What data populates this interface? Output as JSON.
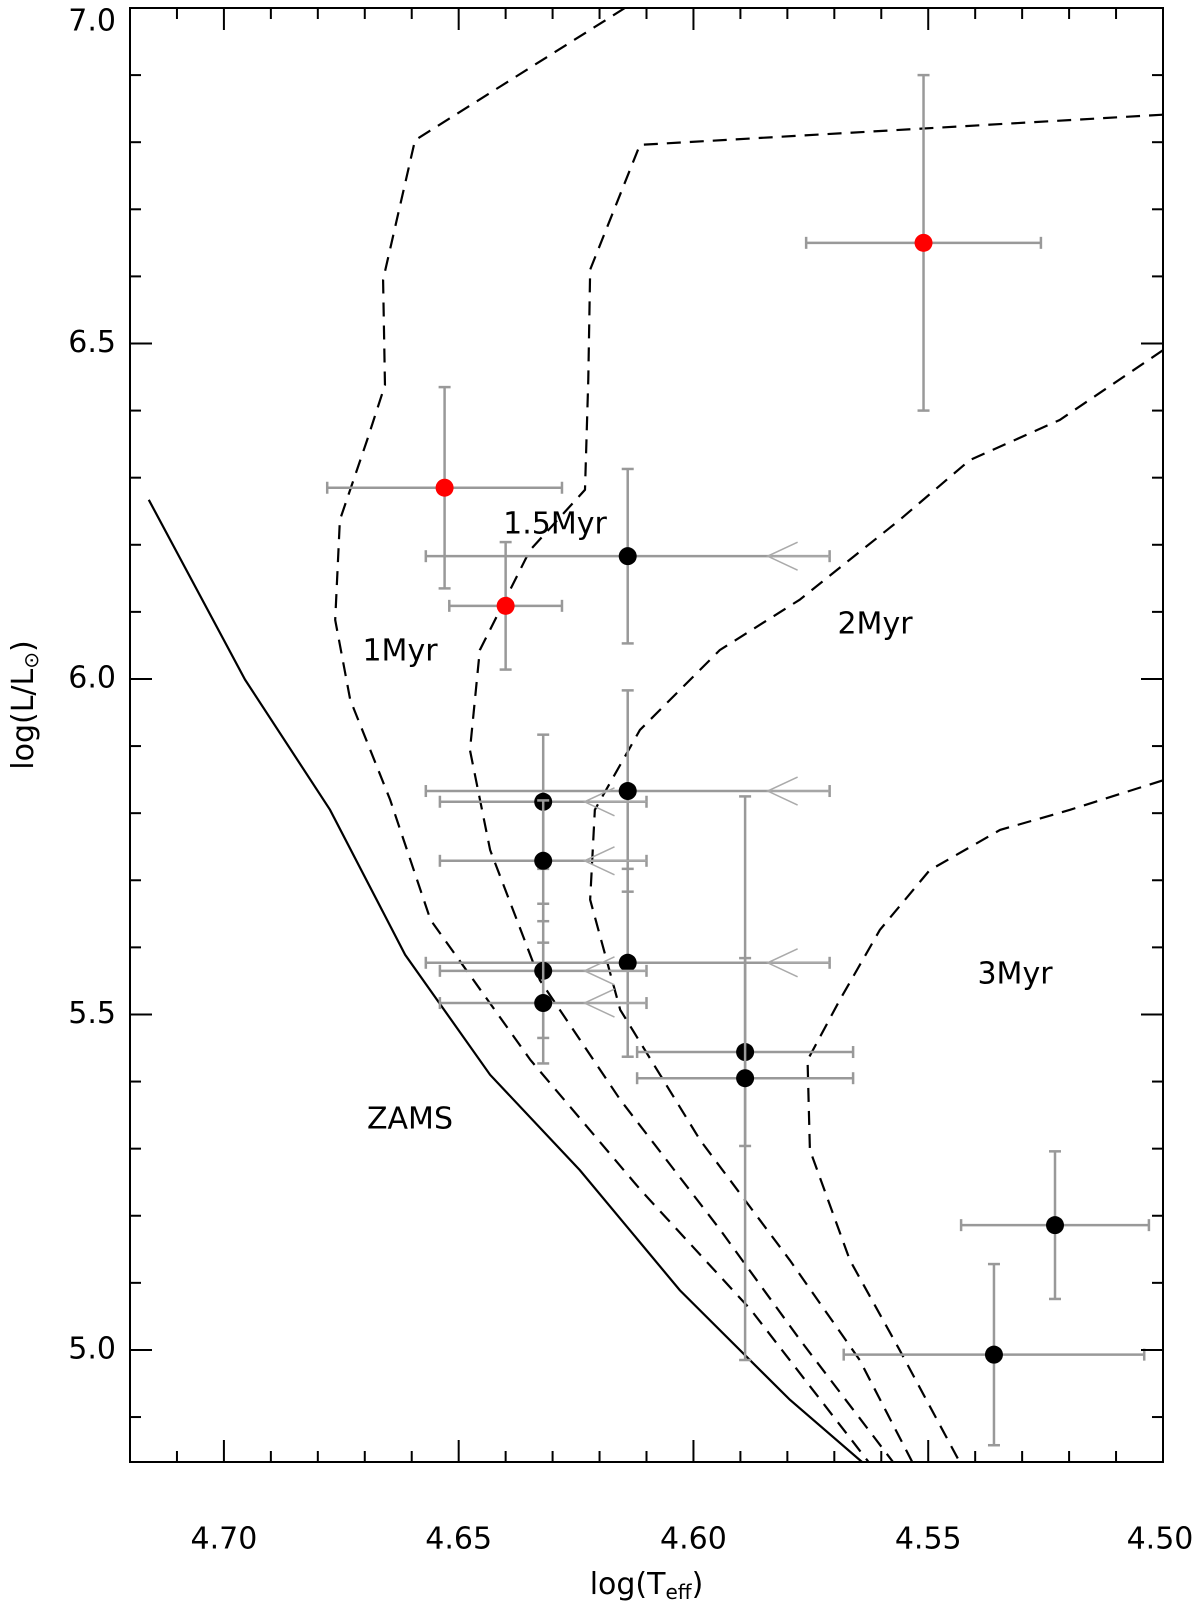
{
  "chart_data": {
    "type": "scatter",
    "xlabel": [
      "log(T",
      "eff",
      ")"
    ],
    "ylabel": [
      "log(L/L",
      "⊙",
      ")"
    ],
    "xlim": [
      4.72,
      4.5
    ],
    "ylim": [
      4.833,
      7.0
    ],
    "xticks": [
      {
        "value": 4.7,
        "label": "4.70"
      },
      {
        "value": 4.65,
        "label": "4.65"
      },
      {
        "value": 4.6,
        "label": "4.60"
      },
      {
        "value": 4.55,
        "label": "4.55"
      },
      {
        "value": 4.5,
        "label": "4.50"
      }
    ],
    "yticks": [
      {
        "value": 5.0,
        "label": "5.0"
      },
      {
        "value": 5.5,
        "label": "5.5"
      },
      {
        "value": 6.0,
        "label": "6.0"
      },
      {
        "value": 6.5,
        "label": "6.5"
      },
      {
        "value": 7.0,
        "label": "7.0"
      }
    ],
    "xminorticks": [
      4.71,
      4.69,
      4.68,
      4.67,
      4.66,
      4.64,
      4.63,
      4.62,
      4.61,
      4.59,
      4.58,
      4.57,
      4.56,
      4.54,
      4.53,
      4.52,
      4.51
    ],
    "yminorticks": [
      4.9,
      5.1,
      5.2,
      5.3,
      5.4,
      5.6,
      5.7,
      5.8,
      5.9,
      6.1,
      6.2,
      6.3,
      6.4,
      6.6,
      6.7,
      6.8,
      6.9
    ],
    "errorbar_color": "#999999",
    "series": [
      {
        "type": "scatter",
        "color": "#ff0000",
        "x": [
          4.551,
          4.653,
          4.64
        ],
        "values": [
          6.65,
          6.285,
          6.109
        ],
        "xerr": [
          0.025,
          0.025,
          0.012
        ],
        "yerr": [
          0.25,
          0.15,
          0.095
        ],
        "left_arrow": [
          false,
          false,
          false
        ]
      },
      {
        "type": "scatter",
        "color": "#000000",
        "x": [
          4.614,
          4.614,
          4.632,
          4.632,
          4.614,
          4.632,
          4.632,
          4.589,
          4.589,
          4.523,
          4.536
        ],
        "values": [
          6.183,
          5.833,
          5.817,
          5.729,
          5.577,
          5.565,
          5.517,
          5.444,
          5.405,
          5.186,
          4.993
        ],
        "xerr": [
          0.043,
          0.043,
          0.022,
          0.022,
          0.043,
          0.022,
          0.022,
          0.023,
          0.023,
          0.02,
          0.032
        ],
        "yerr": [
          0.13,
          0.15,
          0.1,
          0.09,
          0.14,
          0.1,
          0.09,
          0.14,
          0.42,
          0.11,
          0.135
        ],
        "left_arrow": [
          true,
          true,
          true,
          true,
          true,
          true,
          true,
          false,
          false,
          false,
          false
        ]
      },
      {
        "type": "line",
        "color": "#000000",
        "style": "solid",
        "x": [
          4.716,
          4.6955,
          4.6774,
          4.6614,
          4.6433,
          4.6242,
          4.6029,
          4.5795,
          4.5641
        ],
        "values": [
          6.267,
          5.999,
          5.805,
          5.589,
          5.41,
          5.268,
          5.089,
          4.926,
          4.833
        ]
      },
      {
        "type": "line",
        "color": "#000000",
        "style": "dashed",
        "x": [
          4.6146,
          4.6593,
          4.6661,
          4.6657,
          4.6695,
          4.6753,
          4.6763,
          4.6731,
          4.6646,
          4.656,
          4.6347,
          4.6112,
          4.5878,
          4.5627
        ],
        "values": [
          7.0,
          6.803,
          6.595,
          6.438,
          6.356,
          6.237,
          6.088,
          5.969,
          5.82,
          5.641,
          5.432,
          5.238,
          5.06,
          4.833
        ]
      },
      {
        "type": "line",
        "color": "#000000",
        "style": "dashed",
        "x": [
          4.5,
          4.6114,
          4.622,
          4.6224,
          4.6231,
          4.6348,
          4.6455,
          4.6476,
          4.6433,
          4.6327,
          4.6156,
          4.5943,
          4.5773,
          4.5575
        ],
        "values": [
          6.841,
          6.796,
          6.61,
          6.446,
          6.282,
          6.192,
          6.043,
          5.894,
          5.745,
          5.551,
          5.373,
          5.179,
          5.015,
          4.833
        ]
      },
      {
        "type": "line",
        "color": "#000000",
        "style": "dashed",
        "x": [
          4.5,
          4.522,
          4.5412,
          4.5561,
          4.5774,
          4.5944,
          4.6114,
          4.621,
          4.622,
          4.6156,
          4.5986,
          4.5795,
          4.5646,
          4.5534
        ],
        "values": [
          6.49,
          6.386,
          6.326,
          6.237,
          6.118,
          6.043,
          5.924,
          5.805,
          5.671,
          5.507,
          5.313,
          5.134,
          4.985,
          4.833
        ]
      },
      {
        "type": "line",
        "color": "#000000",
        "style": "dashed",
        "x": [
          4.5,
          4.5198,
          4.5347,
          4.5497,
          4.5603,
          4.5688,
          4.5757,
          4.5752,
          4.5667,
          4.5561,
          4.5433
        ],
        "values": [
          5.849,
          5.805,
          5.775,
          5.715,
          5.626,
          5.522,
          5.432,
          5.298,
          5.134,
          5.0,
          4.833
        ]
      }
    ],
    "annotations": [
      "1Myr",
      "1.5Myr",
      "2Myr",
      "3Myr",
      "ZAMS"
    ]
  }
}
